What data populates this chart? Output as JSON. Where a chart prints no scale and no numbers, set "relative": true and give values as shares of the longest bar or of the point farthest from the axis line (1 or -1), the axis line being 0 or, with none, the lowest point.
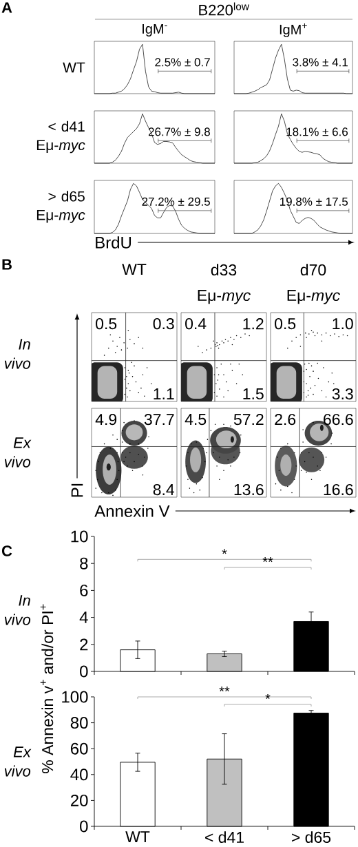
{
  "chart_data": [
    {
      "type": "line",
      "relative": true,
      "title": "IgM$^{-}$",
      "ylabel": "WT",
      "categories": [
        null,
        null,
        null,
        null,
        null,
        null,
        null,
        null,
        null,
        null,
        null,
        null,
        null,
        null,
        null,
        null,
        null,
        null,
        null,
        null,
        null,
        null,
        null,
        null,
        null,
        null,
        null,
        null,
        null,
        null,
        null,
        null,
        null,
        null,
        null,
        null,
        null,
        null,
        null,
        null,
        null
      ],
      "values": [
        0,
        0,
        0,
        0,
        0,
        0,
        0.01,
        0.01,
        0.03,
        0.05,
        0.1,
        0.18,
        0.3,
        0.48,
        0.65,
        0.9,
        1,
        0.45,
        0.14,
        0.05,
        0.04,
        0.02,
        0.01,
        0.01,
        0.01,
        0.01,
        0.01,
        0.02,
        0.03,
        0.01,
        0,
        0,
        0,
        0,
        0,
        0,
        0,
        0,
        0,
        0,
        0
      ],
      "color": "#000000",
      "annotations": [
        "2.5% ± 0.7",
        "A",
        "B220$^{low}$"
      ]
    },
    {
      "type": "line",
      "relative": true,
      "title": "IgM$^{+}$",
      "categories": [
        null,
        null,
        null,
        null,
        null,
        null,
        null,
        null,
        null,
        null,
        null,
        null,
        null,
        null,
        null,
        null,
        null,
        null,
        null,
        null,
        null,
        null,
        null,
        null,
        null,
        null,
        null,
        null,
        null,
        null,
        null,
        null,
        null,
        null,
        null,
        null,
        null,
        null,
        null,
        null,
        null
      ],
      "values": [
        0,
        0,
        0,
        0,
        0,
        0.01,
        0.03,
        0.05,
        0.08,
        0.12,
        0.15,
        0.18,
        0.28,
        0.5,
        0.72,
        0.88,
        1,
        0.7,
        0.3,
        0.07,
        0.05,
        0.07,
        0.06,
        0.02,
        0.01,
        0.01,
        0.01,
        0.01,
        0.01,
        0.01,
        0.01,
        0.01,
        0.01,
        0.01,
        0.01,
        0.01,
        0.01,
        0.01,
        0,
        0,
        0
      ],
      "color": "#000000",
      "annotations": [
        "3.8% ± 4.1"
      ]
    },
    {
      "type": "line",
      "relative": true,
      "ylabel": "< d41 Eμ-*myc*",
      "categories": [
        null,
        null,
        null,
        null,
        null,
        null,
        null,
        null,
        null,
        null,
        null,
        null,
        null,
        null,
        null,
        null,
        null,
        null,
        null,
        null,
        null,
        null,
        null,
        null,
        null,
        null,
        null,
        null,
        null,
        null,
        null,
        null,
        null,
        null,
        null,
        null,
        null,
        null,
        null,
        null,
        null
      ],
      "values": [
        0,
        0,
        0,
        0,
        0,
        0,
        0.02,
        0.06,
        0.14,
        0.24,
        0.4,
        0.52,
        0.58,
        0.64,
        0.7,
        0.8,
        1,
        0.85,
        0.72,
        0.6,
        0.42,
        0.38,
        0.4,
        0.44,
        0.44,
        0.43,
        0.41,
        0.32,
        0.24,
        0.17,
        0.13,
        0.09,
        0.05,
        0.03,
        0.02,
        0.01,
        0,
        0,
        0,
        0,
        0
      ],
      "color": "#000000",
      "annotations": [
        "26.7% ± 9.8"
      ]
    },
    {
      "type": "line",
      "relative": true,
      "categories": [
        null,
        null,
        null,
        null,
        null,
        null,
        null,
        null,
        null,
        null,
        null,
        null,
        null,
        null,
        null,
        null,
        null,
        null,
        null,
        null,
        null,
        null,
        null,
        null,
        null,
        null,
        null,
        null,
        null,
        null,
        null,
        null,
        null,
        null,
        null,
        null,
        null,
        null,
        null,
        null,
        null
      ],
      "values": [
        0,
        0,
        0,
        0,
        0,
        0,
        0,
        0.01,
        0.02,
        0.05,
        0.09,
        0.15,
        0.25,
        0.4,
        0.58,
        0.75,
        1,
        0.85,
        0.6,
        0.48,
        0.38,
        0.3,
        0.24,
        0.22,
        0.24,
        0.23,
        0.22,
        0.2,
        0.19,
        0.17,
        0.1,
        0.06,
        0.03,
        0.02,
        0.01,
        0,
        0,
        0,
        0,
        0,
        0
      ],
      "color": "#000000",
      "annotations": [
        "18.1% ± 6.6"
      ]
    },
    {
      "type": "line",
      "relative": true,
      "ylabel": "> d65 Eμ-*myc*",
      "xlabel": "BrdU",
      "categories": [
        null,
        null,
        null,
        null,
        null,
        null,
        null,
        null,
        null,
        null,
        null,
        null,
        null,
        null,
        null,
        null,
        null,
        null,
        null,
        null,
        null,
        null,
        null,
        null,
        null,
        null,
        null,
        null,
        null,
        null,
        null,
        null,
        null,
        null,
        null,
        null,
        null,
        null,
        null,
        null,
        null
      ],
      "values": [
        0,
        0,
        0,
        0,
        0,
        0,
        0.02,
        0.07,
        0.18,
        0.35,
        0.5,
        0.65,
        0.88,
        1,
        0.95,
        0.82,
        0.68,
        0.62,
        0.56,
        0.5,
        0.36,
        0.31,
        0.31,
        0.42,
        0.52,
        0.56,
        0.55,
        0.44,
        0.28,
        0.16,
        0.1,
        0.06,
        0.03,
        0.02,
        0.01,
        0,
        0,
        0,
        0,
        0,
        0
      ],
      "color": "#000000",
      "annotations": [
        "27.2% ± 29.5"
      ]
    },
    {
      "type": "line",
      "relative": true,
      "categories": [
        null,
        null,
        null,
        null,
        null,
        null,
        null,
        null,
        null,
        null,
        null,
        null,
        null,
        null,
        null,
        null,
        null,
        null,
        null,
        null,
        null,
        null,
        null,
        null,
        null,
        null,
        null,
        null,
        null,
        null,
        null,
        null,
        null,
        null,
        null,
        null,
        null,
        null,
        null,
        null,
        null
      ],
      "values": [
        0,
        0,
        0,
        0,
        0,
        0,
        0,
        0.03,
        0.07,
        0.15,
        0.27,
        0.45,
        0.65,
        0.85,
        0.95,
        1,
        0.92,
        0.8,
        0.66,
        0.46,
        0.34,
        0.22,
        0.2,
        0.26,
        0.3,
        0.32,
        0.3,
        0.26,
        0.19,
        0.13,
        0.1,
        0.07,
        0.05,
        0.03,
        0.02,
        0.01,
        0,
        0,
        0,
        0,
        0
      ],
      "color": "#000000",
      "annotations": [
        "19.8% ± 17.5"
      ]
    },
    {
      "type": "other",
      "title": "WT",
      "annotations": [
        "0.5",
        "0.3",
        "1.1",
        "B",
        "In vivo"
      ]
    },
    {
      "type": "other",
      "title": "d33 Eμ-*myc*",
      "annotations": [
        "0.4",
        "1.2",
        "1.5"
      ]
    },
    {
      "type": "other",
      "title": "d70 Eμ-*myc*",
      "annotations": [
        "0.5",
        "1.0",
        "3.3"
      ]
    },
    {
      "type": "other",
      "xlabel": "Annexin V",
      "ylabel": "PI",
      "annotations": [
        "4.9",
        "37.7",
        "8.4",
        "Ex vivo"
      ]
    },
    {
      "type": "other",
      "annotations": [
        "4.5",
        "57.2",
        "13.6"
      ]
    },
    {
      "type": "other",
      "annotations": [
        "2.6",
        "66.6",
        "16.6"
      ]
    },
    {
      "type": "bar",
      "categories": [
        null,
        null,
        null
      ],
      "values": [
        1.6,
        1.3,
        3.7
      ],
      "colors": [
        "#ffffff",
        "#c0c0c0",
        "#000000"
      ],
      "errors": [
        0.65,
        0.2,
        0.7
      ],
      "ylim": [
        0,
        10
      ],
      "yticks": [
        0,
        2,
        4,
        6,
        8,
        10
      ],
      "annotations": [
        "*",
        "**",
        "C",
        "In vivo"
      ]
    },
    {
      "type": "bar",
      "categories": [
        "WT",
        "< d41",
        "> d65"
      ],
      "values": [
        49.5,
        52,
        87.5
      ],
      "colors": [
        "#ffffff",
        "#c0c0c0",
        "#000000"
      ],
      "errors": [
        7,
        19.5,
        2
      ],
      "ylim": [
        0,
        100
      ],
      "yticks": [
        0,
        20,
        40,
        60,
        80,
        100
      ],
      "ylabel": "% Annexin v$^{+}$ and/or PI$^{+}$",
      "annotations": [
        "**",
        "*",
        "Ex vivo"
      ]
    }
  ]
}
